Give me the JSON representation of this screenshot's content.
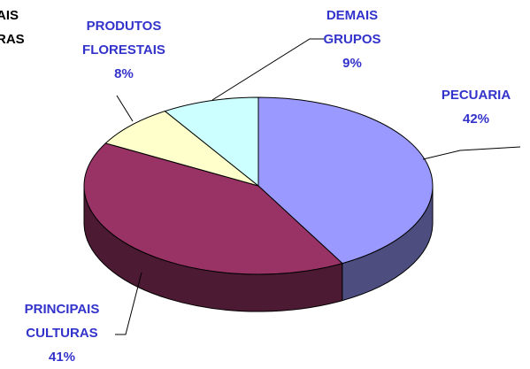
{
  "chart_data": {
    "type": "pie3d",
    "cropped_text": [
      "AIS",
      "RAS"
    ],
    "categories": [
      "PECUARIA",
      "PRINCIPAIS CULTURAS",
      "PRODUTOS FLORESTAIS",
      "DEMAIS GRUPOS"
    ],
    "values": [
      42,
      41,
      8,
      9
    ],
    "value_labels": [
      "42%",
      "41%",
      "8%",
      "9%"
    ],
    "colors": [
      "#9999ff",
      "#993366",
      "#ffffcc",
      "#ccffff"
    ],
    "side_colors": [
      "#4d4d80",
      "#4d1a33",
      "#808066",
      "#668080"
    ]
  }
}
